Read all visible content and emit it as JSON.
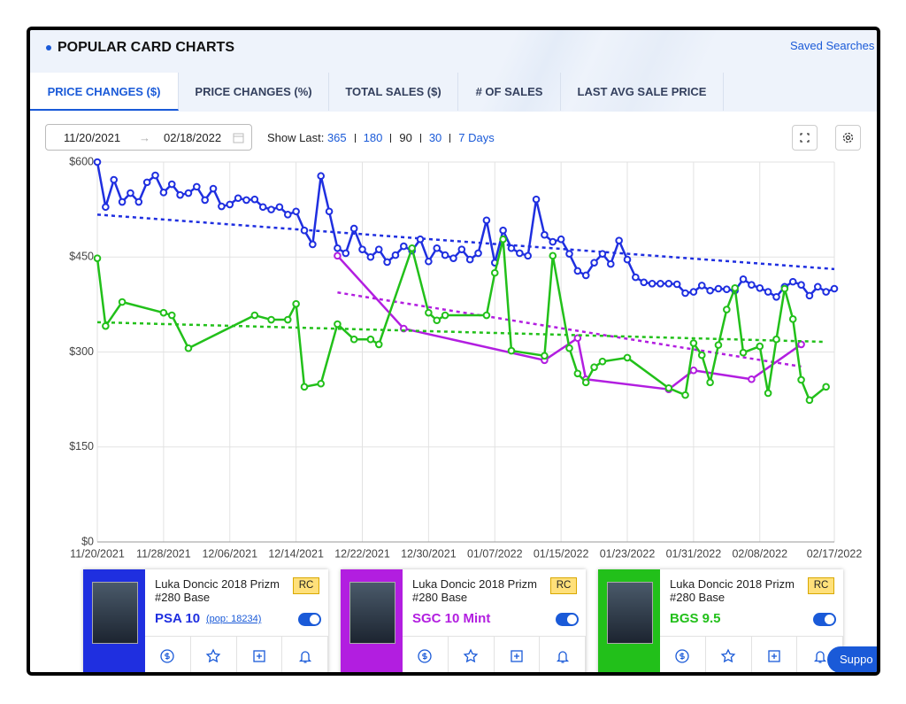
{
  "header": {
    "title": "POPULAR CARD CHARTS",
    "saved_searches": "Saved Searches"
  },
  "tabs": [
    "PRICE CHANGES ($)",
    "PRICE CHANGES (%)",
    "TOTAL SALES ($)",
    "# OF SALES",
    "LAST AVG SALE PRICE"
  ],
  "filters": {
    "date_from": "11/20/2021",
    "date_to": "02/18/2022",
    "show_last_label": "Show Last:",
    "show_last_options": [
      "365",
      "180",
      "90",
      "30",
      "7 Days"
    ]
  },
  "chart_data": {
    "type": "line",
    "xlim": [
      "11/20/2021",
      "02/17/2022"
    ],
    "xticks": [
      "11/20/2021",
      "11/28/2021",
      "12/06/2021",
      "12/14/2021",
      "12/22/2021",
      "12/30/2021",
      "01/07/2022",
      "01/15/2022",
      "01/23/2022",
      "01/31/2022",
      "02/08/2022",
      "02/17/2022"
    ],
    "ylim": [
      0,
      600
    ],
    "yticks": [
      {
        "value": 0,
        "label": "$0"
      },
      {
        "value": 150,
        "label": "$150"
      },
      {
        "value": 300,
        "label": "$300"
      },
      {
        "value": 450,
        "label": "$450"
      },
      {
        "value": 600,
        "label": "$600"
      }
    ],
    "grid": true,
    "series": [
      {
        "name": "PSA 10",
        "color": "#1f2fe0",
        "x": [
          "11/20/2021",
          "11/21/2021",
          "11/22/2021",
          "11/23/2021",
          "11/24/2021",
          "11/25/2021",
          "11/26/2021",
          "11/27/2021",
          "11/28/2021",
          "11/29/2021",
          "11/30/2021",
          "12/01/2021",
          "12/02/2021",
          "12/03/2021",
          "12/04/2021",
          "12/05/2021",
          "12/06/2021",
          "12/07/2021",
          "12/08/2021",
          "12/09/2021",
          "12/10/2021",
          "12/11/2021",
          "12/12/2021",
          "12/13/2021",
          "12/14/2021",
          "12/15/2021",
          "12/16/2021",
          "12/17/2021",
          "12/18/2021",
          "12/19/2021",
          "12/20/2021",
          "12/21/2021",
          "12/22/2021",
          "12/23/2021",
          "12/24/2021",
          "12/25/2021",
          "12/26/2021",
          "12/27/2021",
          "12/28/2021",
          "12/29/2021",
          "12/30/2021",
          "12/31/2021",
          "01/01/2022",
          "01/02/2022",
          "01/03/2022",
          "01/04/2022",
          "01/05/2022",
          "01/06/2022",
          "01/07/2022",
          "01/08/2022",
          "01/09/2022",
          "01/10/2022",
          "01/11/2022",
          "01/12/2022",
          "01/13/2022",
          "01/14/2022",
          "01/15/2022",
          "01/16/2022",
          "01/17/2022",
          "01/18/2022",
          "01/19/2022",
          "01/20/2022",
          "01/21/2022",
          "01/22/2022",
          "01/23/2022",
          "01/24/2022",
          "01/25/2022",
          "01/26/2022",
          "01/27/2022",
          "01/28/2022",
          "01/29/2022",
          "01/30/2022",
          "01/31/2022",
          "02/01/2022",
          "02/02/2022",
          "02/03/2022",
          "02/04/2022",
          "02/05/2022",
          "02/06/2022",
          "02/07/2022",
          "02/08/2022",
          "02/09/2022",
          "02/10/2022",
          "02/11/2022",
          "02/12/2022",
          "02/13/2022",
          "02/14/2022",
          "02/15/2022",
          "02/16/2022",
          "02/17/2022"
        ],
        "values": [
          600,
          529,
          572,
          537,
          551,
          537,
          568,
          579,
          552,
          565,
          548,
          551,
          561,
          540,
          558,
          530,
          533,
          543,
          540,
          541,
          529,
          525,
          529,
          517,
          522,
          492,
          470,
          578,
          522,
          464,
          456,
          495,
          462,
          450,
          462,
          442,
          453,
          467,
          460,
          478,
          443,
          464,
          453,
          448,
          462,
          446,
          456,
          508,
          441,
          492,
          464,
          456,
          452,
          541,
          485,
          474,
          478,
          455,
          428,
          421,
          441,
          455,
          439,
          476,
          446,
          418,
          410,
          408,
          408,
          408,
          407,
          393,
          395,
          405,
          397,
          400,
          399,
          397,
          415,
          406,
          401,
          395,
          387,
          403,
          411,
          406,
          389,
          403,
          395,
          400
        ],
        "trend": {
          "x": [
            "11/20/2021",
            "02/17/2022"
          ],
          "values": [
            517,
            431
          ]
        }
      },
      {
        "name": "SGC 10 Mint",
        "color": "#b21ee0",
        "x": [
          "12/19/2021",
          "12/27/2021",
          "01/13/2022",
          "01/17/2022",
          "01/18/2022",
          "01/28/2022",
          "01/31/2022",
          "02/07/2022",
          "02/13/2022"
        ],
        "values": [
          452,
          337,
          287,
          322,
          257,
          241,
          271,
          257,
          312
        ],
        "trend": {
          "x": [
            "12/19/2021",
            "02/13/2022"
          ],
          "values": [
            394,
            277
          ]
        }
      },
      {
        "name": "BGS 9.5",
        "color": "#22c01a",
        "x": [
          "11/20/2021",
          "11/21/2021",
          "11/23/2021",
          "11/28/2021",
          "11/29/2021",
          "12/01/2021",
          "12/09/2021",
          "12/11/2021",
          "12/13/2021",
          "12/14/2021",
          "12/15/2021",
          "12/17/2021",
          "12/19/2021",
          "12/21/2021",
          "12/23/2021",
          "12/24/2021",
          "12/28/2021",
          "12/30/2021",
          "12/31/2021",
          "01/01/2022",
          "01/06/2022",
          "01/07/2022",
          "01/08/2022",
          "01/09/2022",
          "01/13/2022",
          "01/14/2022",
          "01/16/2022",
          "01/17/2022",
          "01/18/2022",
          "01/19/2022",
          "01/20/2022",
          "01/23/2022",
          "01/28/2022",
          "01/30/2022",
          "01/31/2022",
          "02/01/2022",
          "02/02/2022",
          "02/03/2022",
          "02/04/2022",
          "02/05/2022",
          "02/06/2022",
          "02/08/2022",
          "02/09/2022",
          "02/10/2022",
          "02/11/2022",
          "02/12/2022",
          "02/13/2022",
          "02/14/2022",
          "02/16/2022"
        ],
        "values": [
          448,
          341,
          379,
          362,
          358,
          306,
          358,
          351,
          351,
          376,
          245,
          250,
          344,
          320,
          320,
          312,
          464,
          362,
          350,
          358,
          358,
          425,
          478,
          302,
          294,
          452,
          306,
          266,
          252,
          276,
          285,
          291,
          243,
          232,
          314,
          295,
          252,
          311,
          367,
          401,
          299,
          309,
          235,
          320,
          400,
          352,
          256,
          224,
          245
        ],
        "trend": {
          "x": [
            "11/20/2021",
            "02/16/2022"
          ],
          "values": [
            347,
            316
          ]
        }
      }
    ]
  },
  "cards": [
    {
      "title": "Luka Doncic 2018 Prizm #280 Base",
      "badge": "RC",
      "pop": "(pop: 18234)"
    },
    {
      "title": "Luka Doncic 2018 Prizm #280 Base",
      "badge": "RC"
    },
    {
      "title": "Luka Doncic 2018 Prizm #280 Base",
      "badge": "RC"
    }
  ],
  "support": "Suppo"
}
